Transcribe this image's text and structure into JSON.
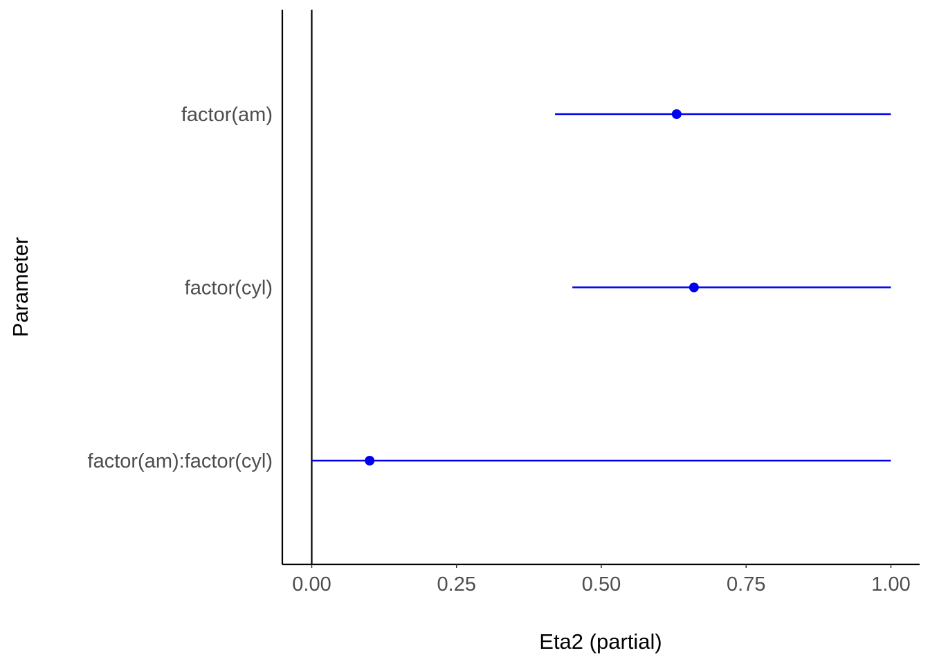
{
  "chart_data": {
    "type": "scatter",
    "subtype": "forest-plot",
    "title": "",
    "xlabel": "Eta2 (partial)",
    "ylabel": "Parameter",
    "xlim": [
      -0.05,
      1.05
    ],
    "xticks": [
      0,
      0.25,
      0.5,
      0.75,
      1
    ],
    "xtick_labels": [
      "0.00",
      "0.25",
      "0.50",
      "0.75",
      "1.00"
    ],
    "reference_line_x": 0,
    "grid": false,
    "legend": "none",
    "point_color": "#0000ee",
    "line_color": "#0000ee",
    "categories": [
      "factor(am)",
      "factor(cyl)",
      "factor(am):factor(cyl)"
    ],
    "series": [
      {
        "estimates": [
          0.63,
          0.66,
          0.1
        ],
        "ci_low": [
          0.42,
          0.45,
          0.0
        ],
        "ci_high": [
          1.0,
          1.0,
          1.0
        ]
      }
    ]
  }
}
